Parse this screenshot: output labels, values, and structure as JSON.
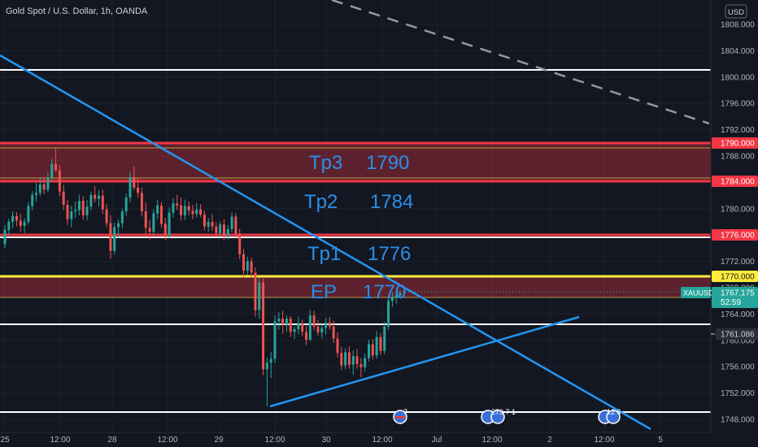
{
  "header": {
    "title": "Gold Spot / U.S. Dollar, 1h, OANDA",
    "currency_button": "USD"
  },
  "chart_data": {
    "type": "candlestick",
    "symbol": "XAUUSD",
    "interval": "1h",
    "ylim": [
      1746.5,
      1809
    ],
    "price_axis_ticks": [
      "1808.000",
      "1804.000",
      "1800.000",
      "1796.000",
      "1792.000",
      "1788.000",
      "1784.000",
      "1780.000",
      "1776.000",
      "1772.000",
      "1768.000",
      "1764.000",
      "1760.000",
      "1756.000",
      "1752.000",
      "1748.000"
    ],
    "time_axis_ticks": [
      "25",
      "12:00",
      "28",
      "12:00",
      "29",
      "12:00",
      "30",
      "12:00",
      "Jul",
      "12:00",
      "2",
      "12:00",
      "5"
    ],
    "levels": [
      {
        "price": 1801.0,
        "color": "#ffffff"
      },
      {
        "price": 1790.0,
        "color": "#f23645",
        "label": "1790.000"
      },
      {
        "price": 1784.0,
        "color": "#f23645",
        "label": "1784.000"
      },
      {
        "price": 1776.0,
        "color": "#f23645",
        "label": "1776.000"
      },
      {
        "price": 1770.0,
        "color": "#ffeb3b",
        "label": "1770.000"
      },
      {
        "price": 1762.0,
        "color": "#ffffff"
      },
      {
        "price": 1749.6,
        "color": "#ffffff"
      }
    ],
    "zones": [
      {
        "from": 1784.0,
        "to": 1790.0,
        "color": "#f23645"
      },
      {
        "from": 1766.5,
        "to": 1770.0,
        "color": "#f23645"
      }
    ],
    "annotations": [
      {
        "text": "Tp3",
        "price": 1788.8
      },
      {
        "text": "1790",
        "price": 1788.8
      },
      {
        "text": "Tp2",
        "price": 1782.0
      },
      {
        "text": "1784",
        "price": 1782.0
      },
      {
        "text": "Tp1",
        "price": 1774.3
      },
      {
        "text": "1776",
        "price": 1774.3
      },
      {
        "text": "EP",
        "price": 1767.9
      },
      {
        "text": "1770",
        "price": 1767.9
      }
    ],
    "current_price": {
      "symbol": "XAUUSD",
      "price": "1767.175",
      "countdown": "52:59"
    },
    "crosshair_price": "1761.086",
    "event_markers": [
      "7",
      "273 7 1",
      "12 6"
    ],
    "candles": [
      [
        1774.6,
        1777.5,
        1774.0,
        1776.8
      ],
      [
        1776.8,
        1778.5,
        1776.0,
        1778.0
      ],
      [
        1778.0,
        1779.6,
        1777.0,
        1778.9
      ],
      [
        1778.9,
        1779.5,
        1777.3,
        1778.2
      ],
      [
        1778.2,
        1779.2,
        1776.5,
        1777.4
      ],
      [
        1777.4,
        1778.6,
        1776.3,
        1778.0
      ],
      [
        1778.0,
        1781.0,
        1777.6,
        1780.4
      ],
      [
        1780.4,
        1782.7,
        1779.8,
        1782.1
      ],
      [
        1782.1,
        1783.9,
        1781.1,
        1782.4
      ],
      [
        1782.4,
        1784.6,
        1781.9,
        1783.7
      ],
      [
        1783.7,
        1784.8,
        1782.2,
        1782.9
      ],
      [
        1782.9,
        1785.5,
        1782.5,
        1784.7
      ],
      [
        1784.7,
        1787.6,
        1784.1,
        1786.8
      ],
      [
        1786.8,
        1789.2,
        1785.7,
        1785.8
      ],
      [
        1785.8,
        1786.6,
        1781.9,
        1782.6
      ],
      [
        1782.6,
        1783.6,
        1779.8,
        1780.6
      ],
      [
        1780.6,
        1781.3,
        1777.5,
        1778.4
      ],
      [
        1778.4,
        1780.5,
        1777.2,
        1779.6
      ],
      [
        1779.6,
        1781.1,
        1778.6,
        1779.8
      ],
      [
        1779.8,
        1782.1,
        1779.0,
        1781.2
      ],
      [
        1781.2,
        1781.9,
        1778.3,
        1779.0
      ],
      [
        1779.0,
        1781.3,
        1778.2,
        1780.3
      ],
      [
        1780.3,
        1782.6,
        1779.7,
        1782.1
      ],
      [
        1782.1,
        1783.4,
        1781.0,
        1781.5
      ],
      [
        1781.5,
        1782.8,
        1780.3,
        1782.0
      ],
      [
        1782.0,
        1782.9,
        1779.2,
        1779.9
      ],
      [
        1779.9,
        1780.7,
        1777.2,
        1777.8
      ],
      [
        1777.8,
        1779.0,
        1772.4,
        1773.6
      ],
      [
        1773.6,
        1777.9,
        1773.0,
        1777.2
      ],
      [
        1777.2,
        1778.3,
        1775.6,
        1777.8
      ],
      [
        1777.8,
        1780.0,
        1777.0,
        1779.6
      ],
      [
        1779.6,
        1782.3,
        1778.9,
        1781.7
      ],
      [
        1781.7,
        1785.6,
        1781.0,
        1784.8
      ],
      [
        1784.8,
        1786.4,
        1782.8,
        1783.2
      ],
      [
        1783.2,
        1784.7,
        1781.7,
        1782.4
      ],
      [
        1782.4,
        1783.2,
        1778.8,
        1779.6
      ],
      [
        1779.6,
        1781.0,
        1776.1,
        1777.1
      ],
      [
        1777.1,
        1778.3,
        1775.3,
        1776.5
      ],
      [
        1776.5,
        1779.9,
        1776.0,
        1779.3
      ],
      [
        1779.3,
        1781.3,
        1778.4,
        1780.5
      ],
      [
        1780.5,
        1781.0,
        1777.1,
        1777.7
      ],
      [
        1777.7,
        1778.6,
        1775.2,
        1775.9
      ],
      [
        1775.9,
        1780.2,
        1775.5,
        1779.4
      ],
      [
        1779.4,
        1781.6,
        1778.7,
        1780.8
      ],
      [
        1780.8,
        1782.1,
        1779.8,
        1780.5
      ],
      [
        1780.5,
        1781.7,
        1778.2,
        1779.0
      ],
      [
        1779.0,
        1781.4,
        1778.3,
        1780.4
      ],
      [
        1780.4,
        1781.1,
        1779.0,
        1779.7
      ],
      [
        1779.7,
        1780.6,
        1778.4,
        1779.2
      ],
      [
        1779.2,
        1780.9,
        1778.7,
        1779.9
      ],
      [
        1779.9,
        1780.7,
        1778.7,
        1779.1
      ],
      [
        1779.1,
        1779.7,
        1776.7,
        1777.3
      ],
      [
        1777.3,
        1778.6,
        1776.5,
        1778.0
      ],
      [
        1778.0,
        1779.2,
        1776.6,
        1777.3
      ],
      [
        1777.3,
        1778.0,
        1775.7,
        1776.3
      ],
      [
        1776.3,
        1778.1,
        1775.8,
        1777.6
      ],
      [
        1777.6,
        1778.4,
        1775.2,
        1775.9
      ],
      [
        1775.9,
        1777.5,
        1775.3,
        1776.9
      ],
      [
        1776.9,
        1779.4,
        1776.4,
        1778.8
      ],
      [
        1778.8,
        1779.3,
        1775.6,
        1776.2
      ],
      [
        1776.2,
        1777.0,
        1772.3,
        1773.1
      ],
      [
        1773.1,
        1773.9,
        1769.6,
        1770.6
      ],
      [
        1770.6,
        1772.7,
        1769.9,
        1772.0
      ],
      [
        1772.0,
        1772.6,
        1769.5,
        1770.3
      ],
      [
        1770.3,
        1771.1,
        1763.6,
        1764.6
      ],
      [
        1764.6,
        1769.6,
        1763.3,
        1768.8
      ],
      [
        1768.8,
        1769.4,
        1754.7,
        1755.6
      ],
      [
        1755.6,
        1757.4,
        1750.0,
        1756.6
      ],
      [
        1756.6,
        1758.2,
        1754.3,
        1757.2
      ],
      [
        1757.2,
        1763.8,
        1756.6,
        1762.9
      ],
      [
        1762.9,
        1764.3,
        1761.6,
        1763.3
      ],
      [
        1763.3,
        1764.5,
        1761.0,
        1762.4
      ],
      [
        1762.4,
        1763.8,
        1761.3,
        1763.3
      ],
      [
        1763.3,
        1763.7,
        1760.5,
        1761.3
      ],
      [
        1761.3,
        1762.1,
        1760.2,
        1761.7
      ],
      [
        1761.7,
        1763.6,
        1760.9,
        1762.6
      ],
      [
        1762.6,
        1763.2,
        1760.6,
        1761.3
      ],
      [
        1761.3,
        1762.2,
        1759.3,
        1760.1
      ],
      [
        1760.1,
        1764.6,
        1759.9,
        1763.8
      ],
      [
        1763.8,
        1764.5,
        1761.5,
        1762.1
      ],
      [
        1762.1,
        1763.1,
        1760.7,
        1761.2
      ],
      [
        1761.2,
        1762.6,
        1760.3,
        1761.9
      ],
      [
        1761.9,
        1763.4,
        1760.9,
        1762.7
      ],
      [
        1762.7,
        1763.6,
        1761.6,
        1762.1
      ],
      [
        1762.1,
        1763.0,
        1759.6,
        1760.3
      ],
      [
        1760.3,
        1761.2,
        1757.4,
        1758.1
      ],
      [
        1758.1,
        1759.0,
        1755.5,
        1756.2
      ],
      [
        1756.2,
        1758.8,
        1755.6,
        1758.2
      ],
      [
        1758.2,
        1759.1,
        1755.7,
        1756.3
      ],
      [
        1756.3,
        1758.5,
        1754.8,
        1757.6
      ],
      [
        1757.6,
        1758.7,
        1755.7,
        1756.4
      ],
      [
        1756.4,
        1757.3,
        1754.4,
        1755.9
      ],
      [
        1755.9,
        1758.0,
        1755.3,
        1757.3
      ],
      [
        1757.3,
        1760.1,
        1756.8,
        1759.4
      ],
      [
        1759.4,
        1760.2,
        1757.1,
        1757.7
      ],
      [
        1757.7,
        1761.4,
        1757.2,
        1760.5
      ],
      [
        1760.5,
        1761.1,
        1757.8,
        1758.4
      ],
      [
        1758.4,
        1762.8,
        1757.9,
        1762.1
      ],
      [
        1762.1,
        1766.6,
        1761.6,
        1766.0
      ],
      [
        1766.0,
        1767.4,
        1765.1,
        1766.5
      ],
      [
        1766.5,
        1767.6,
        1765.6,
        1766.8
      ],
      [
        1766.8,
        1767.6,
        1766.3,
        1767.2
      ]
    ]
  }
}
